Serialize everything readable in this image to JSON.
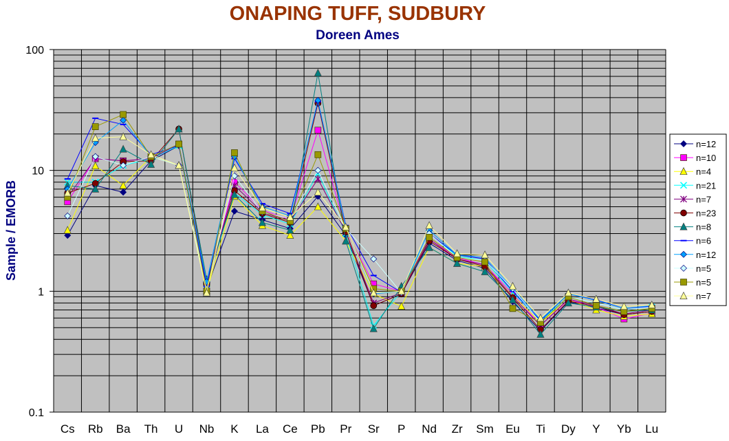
{
  "chart_data": {
    "type": "line",
    "title": "ONAPING TUFF, SUDBURY",
    "subtitle": "Doreen Ames",
    "ylabel": "Sample / EMORB",
    "xlabel": "",
    "yscale": "log",
    "ylim": [
      0.1,
      100
    ],
    "yticks": [
      "0.1",
      "1",
      "10",
      "100"
    ],
    "grid": true,
    "legend": "right",
    "categories": [
      "Cs",
      "Rb",
      "Ba",
      "Th",
      "U",
      "Nb",
      "K",
      "La",
      "Ce",
      "Pb",
      "Pr",
      "Sr",
      "P",
      "Nd",
      "Zr",
      "Sm",
      "Eu",
      "Ti",
      "Dy",
      "Y",
      "Yb",
      "Lu"
    ],
    "series": [
      {
        "name": "n=12",
        "color": "#000080",
        "marker": "diamond",
        "values": [
          2.9,
          7.5,
          6.6,
          12,
          16,
          1.05,
          4.6,
          3.9,
          3.3,
          6.1,
          2.9,
          0.76,
          0.95,
          2.5,
          1.8,
          1.55,
          0.82,
          0.47,
          0.82,
          0.73,
          0.64,
          0.68
        ]
      },
      {
        "name": "n=10",
        "color": "#ff00ff",
        "marker": "square",
        "values": [
          5.5,
          12.5,
          12,
          12.5,
          16.5,
          1.15,
          8,
          4.7,
          3.9,
          21.5,
          3.2,
          1.15,
          1.0,
          2.7,
          1.9,
          1.65,
          0.95,
          0.52,
          0.85,
          0.74,
          0.59,
          0.66
        ]
      },
      {
        "name": "n=4",
        "color": "#ffff00",
        "marker": "triangle",
        "values": [
          3.2,
          10.9,
          7.5,
          13,
          11,
          1.0,
          6.1,
          3.5,
          2.9,
          5.0,
          2.6,
          0.95,
          0.75,
          2.3,
          1.7,
          1.6,
          0.92,
          0.55,
          0.85,
          0.7,
          0.62,
          0.65
        ]
      },
      {
        "name": "n=21",
        "color": "#00ffff",
        "marker": "x",
        "values": [
          8.0,
          8.0,
          11,
          12.5,
          16,
          1.15,
          6.5,
          4.3,
          3.6,
          9.5,
          3.0,
          0.52,
          1.0,
          3.0,
          1.95,
          1.8,
          0.98,
          0.57,
          0.9,
          0.8,
          0.7,
          0.74
        ]
      },
      {
        "name": "n=7",
        "color": "#800080",
        "marker": "star",
        "values": [
          6.0,
          12.5,
          12,
          12.5,
          16.5,
          1.1,
          7.5,
          4.5,
          3.8,
          8.5,
          3.1,
          0.8,
          0.97,
          2.7,
          1.85,
          1.65,
          0.9,
          0.52,
          0.86,
          0.76,
          0.65,
          0.7
        ]
      },
      {
        "name": "n=23",
        "color": "#800000",
        "marker": "circle",
        "values": [
          6.5,
          7.8,
          11.8,
          12,
          22,
          1.15,
          6.8,
          4.4,
          3.7,
          36,
          3.1,
          0.76,
          0.95,
          2.6,
          1.85,
          1.6,
          0.88,
          0.48,
          0.83,
          0.75,
          0.64,
          0.68
        ]
      },
      {
        "name": "n=8",
        "color": "#008080",
        "marker": "triangle",
        "values": [
          7.5,
          7.0,
          15,
          11.2,
          22,
          1.25,
          6.3,
          3.7,
          3.2,
          64,
          2.6,
          0.49,
          1.1,
          2.3,
          1.7,
          1.45,
          0.85,
          0.44,
          0.8,
          0.74,
          0.68,
          0.7
        ]
      },
      {
        "name": "n=6",
        "color": "#0000ff",
        "marker": "dash",
        "values": [
          8.5,
          27,
          24,
          13.5,
          16,
          1.1,
          12.5,
          5.3,
          4.4,
          37,
          3.5,
          1.35,
          0.98,
          3.0,
          2.0,
          1.85,
          1.0,
          0.57,
          0.95,
          0.85,
          0.72,
          0.75
        ]
      },
      {
        "name": "n=12",
        "color": "#00a0ff",
        "marker": "diamond",
        "values": [
          7.0,
          17,
          26,
          13,
          16.5,
          1.2,
          13,
          5.0,
          4.2,
          38,
          3.4,
          0.95,
          1.0,
          3.2,
          2.0,
          1.9,
          1.05,
          0.58,
          0.95,
          0.84,
          0.72,
          0.76
        ]
      },
      {
        "name": "n=5",
        "color": "#ccffff",
        "marker": "diamond",
        "values": [
          4.2,
          13,
          11,
          13,
          11,
          1.05,
          9,
          4.5,
          4.0,
          10,
          3.3,
          1.85,
          0.97,
          3.0,
          1.9,
          1.8,
          1.05,
          0.55,
          0.9,
          0.8,
          0.7,
          0.74
        ]
      },
      {
        "name": "n=5",
        "color": "#999900",
        "marker": "square",
        "values": [
          6.0,
          23,
          29,
          13,
          16.5,
          1.0,
          14,
          4.6,
          3.8,
          13.5,
          3.3,
          1.05,
          1.0,
          2.8,
          1.9,
          1.75,
          0.72,
          0.55,
          0.9,
          0.76,
          0.68,
          0.72
        ]
      },
      {
        "name": "n=7",
        "color": "#ffff99",
        "marker": "triangle",
        "values": [
          6.5,
          18.5,
          19,
          13.5,
          11,
          0.97,
          10.5,
          4.9,
          4.1,
          6.6,
          3.4,
          0.97,
          1.0,
          3.5,
          2.05,
          2.0,
          1.1,
          0.6,
          0.97,
          0.86,
          0.75,
          0.77
        ]
      }
    ]
  }
}
